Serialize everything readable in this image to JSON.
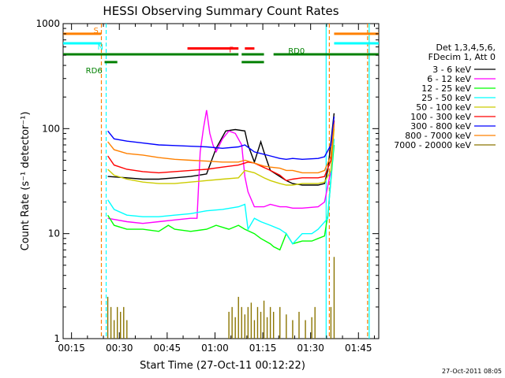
{
  "colors": {
    "black": "#000000",
    "magenta": "#ff00ff",
    "green": "#00ff00",
    "cyan": "#00ffff",
    "yellow": "#cccc00",
    "red": "#ff0000",
    "blue": "#0000ff",
    "orange": "#ff8000",
    "olive": "#8b7500",
    "darkgreen": "#008000"
  },
  "chart_data": {
    "type": "line",
    "title": "HESSI Observing Summary Count Rates",
    "xlabel": "Start Time (27-Oct-11 00:12:22)",
    "ylabel": "Count Rate (s⁻¹ detector⁻¹)",
    "x_unit": "minutes after 00:12:22",
    "xlim": [
      0,
      99
    ],
    "ylim": [
      1,
      1000
    ],
    "yscale": "log",
    "xticks": [
      "00:15",
      "00:30",
      "00:45",
      "01:00",
      "01:15",
      "01:30",
      "01:45"
    ],
    "yticks": [
      "1",
      "10",
      "100",
      "1000"
    ],
    "legend_header": [
      "Det 1,3,4,5,6,",
      "FDecim 1, Att 0"
    ],
    "legend_position": "right",
    "footer_date": "27-Oct-2011 08:05",
    "series": [
      {
        "name": "3 - 6 keV",
        "color": "black",
        "points": [
          [
            14,
            35
          ],
          [
            20,
            34
          ],
          [
            25,
            33
          ],
          [
            30,
            33
          ],
          [
            35,
            34
          ],
          [
            40,
            35
          ],
          [
            45,
            37
          ],
          [
            48,
            65
          ],
          [
            51,
            95
          ],
          [
            54,
            98
          ],
          [
            57,
            95
          ],
          [
            58,
            70
          ],
          [
            60,
            48
          ],
          [
            62,
            75
          ],
          [
            63,
            60
          ],
          [
            65,
            40
          ],
          [
            68,
            35
          ],
          [
            70,
            32
          ],
          [
            72,
            30
          ],
          [
            75,
            29
          ],
          [
            80,
            29
          ],
          [
            82,
            30
          ],
          [
            83,
            40
          ],
          [
            85,
            140
          ]
        ]
      },
      {
        "name": "6 - 12 keV",
        "color": "magenta",
        "points": [
          [
            14,
            14
          ],
          [
            20,
            13
          ],
          [
            25,
            12.5
          ],
          [
            30,
            13
          ],
          [
            35,
            13.5
          ],
          [
            40,
            14
          ],
          [
            42,
            14
          ],
          [
            43,
            60
          ],
          [
            44,
            100
          ],
          [
            45,
            150
          ],
          [
            46,
            90
          ],
          [
            47,
            70
          ],
          [
            48,
            60
          ],
          [
            50,
            80
          ],
          [
            52,
            95
          ],
          [
            54,
            90
          ],
          [
            56,
            70
          ],
          [
            57,
            35
          ],
          [
            58,
            25
          ],
          [
            60,
            18
          ],
          [
            63,
            18
          ],
          [
            65,
            19
          ],
          [
            68,
            18
          ],
          [
            70,
            18
          ],
          [
            72,
            17.5
          ],
          [
            75,
            17.5
          ],
          [
            80,
            18
          ],
          [
            82,
            20
          ],
          [
            84,
            40
          ],
          [
            85,
            110
          ]
        ]
      },
      {
        "name": "12 - 25 keV",
        "color": "green",
        "points": [
          [
            14,
            15
          ],
          [
            16,
            12
          ],
          [
            20,
            11
          ],
          [
            25,
            11
          ],
          [
            30,
            10.5
          ],
          [
            33,
            12
          ],
          [
            35,
            11
          ],
          [
            40,
            10.5
          ],
          [
            45,
            11
          ],
          [
            48,
            12
          ],
          [
            52,
            11
          ],
          [
            55,
            12
          ],
          [
            57,
            11
          ],
          [
            60,
            10
          ],
          [
            62,
            9
          ],
          [
            65,
            8
          ],
          [
            66,
            7.5
          ],
          [
            68,
            7
          ],
          [
            70,
            10
          ],
          [
            72,
            8
          ],
          [
            75,
            8.5
          ],
          [
            78,
            8.5
          ],
          [
            80,
            9
          ],
          [
            82,
            9.5
          ],
          [
            83,
            15
          ],
          [
            85,
            70
          ]
        ]
      },
      {
        "name": "25 - 50 keV",
        "color": "cyan",
        "points": [
          [
            14,
            21
          ],
          [
            16,
            17
          ],
          [
            20,
            15
          ],
          [
            25,
            14.5
          ],
          [
            30,
            14.5
          ],
          [
            35,
            15
          ],
          [
            40,
            15.5
          ],
          [
            45,
            16.5
          ],
          [
            50,
            17
          ],
          [
            55,
            18
          ],
          [
            57,
            19
          ],
          [
            58,
            11
          ],
          [
            60,
            14
          ],
          [
            62,
            13
          ],
          [
            65,
            12
          ],
          [
            68,
            11
          ],
          [
            70,
            10
          ],
          [
            72,
            8
          ],
          [
            75,
            10
          ],
          [
            78,
            10
          ],
          [
            80,
            11
          ],
          [
            83,
            14
          ],
          [
            85,
            80
          ]
        ]
      },
      {
        "name": "50 - 100 keV",
        "color": "yellow",
        "points": [
          [
            14,
            41
          ],
          [
            16,
            36
          ],
          [
            20,
            33
          ],
          [
            25,
            31
          ],
          [
            30,
            30
          ],
          [
            35,
            30
          ],
          [
            40,
            31
          ],
          [
            45,
            32
          ],
          [
            50,
            33
          ],
          [
            55,
            34
          ],
          [
            57,
            40
          ],
          [
            60,
            38
          ],
          [
            63,
            34
          ],
          [
            65,
            32
          ],
          [
            68,
            30
          ],
          [
            70,
            29
          ],
          [
            72,
            29
          ],
          [
            75,
            30
          ],
          [
            80,
            30
          ],
          [
            82,
            31
          ],
          [
            84,
            40
          ],
          [
            85,
            100
          ]
        ]
      },
      {
        "name": "100 - 300 keV",
        "color": "red",
        "points": [
          [
            14,
            55
          ],
          [
            16,
            45
          ],
          [
            20,
            41
          ],
          [
            25,
            39
          ],
          [
            30,
            38
          ],
          [
            35,
            39
          ],
          [
            40,
            40
          ],
          [
            45,
            41
          ],
          [
            50,
            43
          ],
          [
            55,
            45
          ],
          [
            58,
            48
          ],
          [
            60,
            47
          ],
          [
            62,
            44
          ],
          [
            65,
            40
          ],
          [
            68,
            36
          ],
          [
            70,
            32
          ],
          [
            72,
            33
          ],
          [
            75,
            34
          ],
          [
            80,
            34
          ],
          [
            82,
            35
          ],
          [
            84,
            50
          ],
          [
            85,
            120
          ]
        ]
      },
      {
        "name": "300 - 800 keV",
        "color": "blue",
        "points": [
          [
            14,
            95
          ],
          [
            16,
            80
          ],
          [
            20,
            76
          ],
          [
            25,
            73
          ],
          [
            30,
            70
          ],
          [
            35,
            69
          ],
          [
            40,
            68
          ],
          [
            45,
            67
          ],
          [
            50,
            65
          ],
          [
            55,
            67
          ],
          [
            57,
            70
          ],
          [
            60,
            60
          ],
          [
            63,
            57
          ],
          [
            65,
            55
          ],
          [
            68,
            52
          ],
          [
            70,
            51
          ],
          [
            72,
            52
          ],
          [
            75,
            51
          ],
          [
            80,
            52
          ],
          [
            82,
            54
          ],
          [
            84,
            70
          ],
          [
            85,
            130
          ]
        ]
      },
      {
        "name": "800 - 7000 keV",
        "color": "orange",
        "points": [
          [
            14,
            75
          ],
          [
            16,
            63
          ],
          [
            20,
            58
          ],
          [
            25,
            56
          ],
          [
            30,
            53
          ],
          [
            35,
            51
          ],
          [
            40,
            50
          ],
          [
            45,
            49
          ],
          [
            50,
            48
          ],
          [
            55,
            48
          ],
          [
            57,
            50
          ],
          [
            60,
            47
          ],
          [
            63,
            44
          ],
          [
            65,
            43
          ],
          [
            68,
            42
          ],
          [
            70,
            40
          ],
          [
            72,
            40
          ],
          [
            75,
            38
          ],
          [
            80,
            38
          ],
          [
            82,
            40
          ],
          [
            84,
            55
          ],
          [
            85,
            110
          ]
        ]
      },
      {
        "name": "7000 - 20000 keV",
        "color": "olive",
        "points": [
          [
            14,
            2.5
          ],
          [
            15,
            2
          ],
          [
            16,
            1.5
          ],
          [
            17,
            2
          ],
          [
            18,
            1.8
          ],
          [
            19,
            2
          ],
          [
            20,
            1.5
          ],
          [
            52,
            1.8
          ],
          [
            53,
            2
          ],
          [
            54,
            1.6
          ],
          [
            55,
            2.5
          ],
          [
            56,
            2
          ],
          [
            57,
            1.7
          ],
          [
            58,
            2
          ],
          [
            59,
            2.2
          ],
          [
            60,
            1.5
          ],
          [
            61,
            2
          ],
          [
            62,
            1.8
          ],
          [
            63,
            2.3
          ],
          [
            64,
            1.6
          ],
          [
            65,
            2
          ],
          [
            66,
            1.8
          ],
          [
            68,
            2
          ],
          [
            70,
            1.7
          ],
          [
            72,
            1.5
          ],
          [
            74,
            1.8
          ],
          [
            76,
            1.5
          ],
          [
            78,
            1.6
          ],
          [
            79,
            2
          ],
          [
            84,
            2
          ],
          [
            85,
            6
          ]
        ]
      }
    ],
    "state_bars": [
      {
        "label": "S",
        "color": "orange",
        "level": 800,
        "segments": [
          [
            0,
            12
          ],
          [
            85,
            99
          ]
        ]
      },
      {
        "label": "N",
        "color": "cyan",
        "level": 650,
        "segments": [
          [
            0,
            12
          ],
          [
            85,
            99
          ]
        ]
      },
      {
        "label": "F",
        "color": "red",
        "level": 580,
        "segments": [
          [
            39,
            55
          ],
          [
            57,
            60
          ]
        ]
      },
      {
        "label": "RD6",
        "color": "darkgreen",
        "level": 430,
        "segments": [
          [
            13,
            17
          ]
        ]
      },
      {
        "label": "RD0",
        "color": "darkgreen",
        "level": 510,
        "segments": [
          [
            0,
            55
          ],
          [
            56,
            63
          ],
          [
            66,
            99
          ]
        ]
      },
      {
        "label": "",
        "color": "darkgreen",
        "level": 430,
        "segments": [
          [
            56,
            63
          ]
        ]
      }
    ],
    "vlines": [
      {
        "x": 12,
        "color": "orange",
        "dash": true
      },
      {
        "x": 13.5,
        "color": "cyan",
        "dash": true
      },
      {
        "x": 82.5,
        "color": "cyan",
        "dash": false
      },
      {
        "x": 83.5,
        "color": "orange",
        "dash": true
      },
      {
        "x": 95.5,
        "color": "orange",
        "dash": true
      },
      {
        "x": 96,
        "color": "cyan",
        "dash": false
      }
    ]
  }
}
